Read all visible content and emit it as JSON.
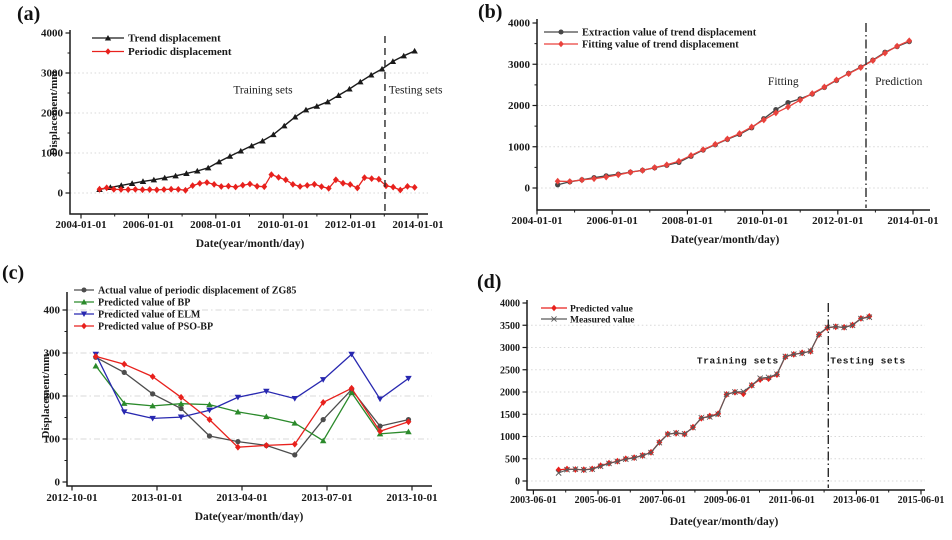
{
  "figure": {
    "background": "#ffffff",
    "text_color": "#1a1a1a",
    "grid_color": "#d8d8d8",
    "description": "Four-panel landslide displacement figure"
  },
  "chart_data": [
    {
      "id": "a",
      "panel_label": "(a)",
      "type": "line",
      "xlabel": "Date(year/month/day)",
      "ylabel": "Displacement/mm",
      "ylim": [
        0,
        4000
      ],
      "xlim_labels": [
        "2004-01-01",
        "2014-01-01"
      ],
      "legend_position": "top-left-inside",
      "grid": "dotted-horizontal",
      "x_ticks": [
        {
          "v": 2004,
          "label": "2004-01-01"
        },
        {
          "v": 2006,
          "label": "2006-01-01"
        },
        {
          "v": 2008,
          "label": "2008-01-01"
        },
        {
          "v": 2010,
          "label": "2010-01-01"
        },
        {
          "v": 2012,
          "label": "2012-01-01"
        },
        {
          "v": 2014,
          "label": "2014-01-01"
        }
      ],
      "x_minor": [
        2005,
        2007,
        2009,
        2011,
        2013
      ],
      "y_ticks": [
        {
          "v": 0,
          "label": "0"
        },
        {
          "v": 1000,
          "label": "1000"
        },
        {
          "v": 2000,
          "label": "2000"
        },
        {
          "v": 3000,
          "label": "3000"
        },
        {
          "v": 4000,
          "label": "4000"
        }
      ],
      "y_minor": [
        500,
        1500,
        2500,
        3500
      ],
      "grid_y": [
        0,
        1000,
        2000,
        3000
      ],
      "grid_dash": "1.5 2.6",
      "separator": {
        "x": 2013.02,
        "style": "dashed"
      },
      "annotations": [
        {
          "x": 2009.4,
          "y": 2585,
          "text": "Training sets"
        },
        {
          "x": 2013.93,
          "y": 2585,
          "text": "Testing sets"
        }
      ],
      "series": [
        {
          "name": "Trend displacement",
          "color": "#1a1a1a",
          "marker": "triangle-up",
          "width": 1.4,
          "x0": 2004.55,
          "dx": 0.3224,
          "values": [
            90,
            140,
            190,
            240,
            290,
            330,
            380,
            430,
            490,
            550,
            630,
            780,
            920,
            1050,
            1180,
            1300,
            1460,
            1680,
            1900,
            2080,
            2170,
            2280,
            2440,
            2600,
            2780,
            2950,
            3100,
            3290,
            3430,
            3550
          ]
        },
        {
          "name": "Periodic displacement",
          "color": "#e8211d",
          "marker": "diamond",
          "width": 1.3,
          "x0": 2004.55,
          "dx": 0.2125,
          "values": [
            95,
            130,
            92,
            88,
            85,
            90,
            82,
            86,
            78,
            88,
            95,
            90,
            68,
            185,
            240,
            262,
            215,
            162,
            172,
            150,
            195,
            225,
            168,
            158,
            460,
            390,
            330,
            215,
            162,
            190,
            218,
            160,
            115,
            330,
            245,
            212,
            125,
            385,
            360,
            345,
            180,
            148,
            75,
            165,
            140
          ]
        }
      ]
    },
    {
      "id": "b",
      "panel_label": "(b)",
      "type": "line",
      "xlabel": "Date(year/month/day)",
      "ylabel": "",
      "ylim": [
        0,
        4000
      ],
      "xlim_labels": [
        "2004-01-01",
        "2014-01-01"
      ],
      "legend_position": "top-left-inside",
      "grid": "dotted-horizontal",
      "x_ticks": [
        {
          "v": 2004,
          "label": "2004-01-01"
        },
        {
          "v": 2006,
          "label": "2006-01-01"
        },
        {
          "v": 2008,
          "label": "2008-01-01"
        },
        {
          "v": 2010,
          "label": "2010-01-01"
        },
        {
          "v": 2012,
          "label": "2012-01-01"
        },
        {
          "v": 2014,
          "label": "2014-01-01"
        }
      ],
      "x_minor": [
        2005,
        2007,
        2009,
        2011,
        2013
      ],
      "y_ticks": [
        {
          "v": 0,
          "label": "0"
        },
        {
          "v": 1000,
          "label": "1000"
        },
        {
          "v": 2000,
          "label": "2000"
        },
        {
          "v": 3000,
          "label": "3000"
        },
        {
          "v": 4000,
          "label": "4000"
        }
      ],
      "y_minor": [
        500,
        1500,
        2500,
        3500
      ],
      "grid_y": [
        0,
        1000,
        2000,
        3000
      ],
      "grid_dash": "1.5 2.6",
      "separator": {
        "x": 2012.75,
        "style": "dashdot"
      },
      "annotations": [
        {
          "x": 2010.55,
          "y": 2590,
          "text": "Fitting"
        },
        {
          "x": 2013.62,
          "y": 2590,
          "text": "Prediction"
        }
      ],
      "series": [
        {
          "name": "Extraction value of trend displacement",
          "color": "#474747",
          "marker": "circle",
          "width": 1.3,
          "x0": 2004.55,
          "dx": 0.3224,
          "values": [
            80,
            150,
            200,
            250,
            295,
            335,
            385,
            430,
            490,
            550,
            620,
            770,
            920,
            1050,
            1180,
            1300,
            1460,
            1680,
            1900,
            2070,
            2160,
            2280,
            2440,
            2610,
            2780,
            2930,
            3100,
            3290,
            3430,
            3550
          ]
        },
        {
          "name": "Fitting value of trend displacement",
          "color": "#e9423c",
          "marker": "diamond",
          "width": 1.3,
          "x0": 2004.55,
          "dx": 0.3224,
          "values": [
            165,
            158,
            196,
            226,
            266,
            320,
            382,
            426,
            496,
            562,
            650,
            790,
            930,
            1060,
            1190,
            1320,
            1480,
            1650,
            1820,
            1965,
            2130,
            2290,
            2450,
            2620,
            2770,
            2920,
            3090,
            3270,
            3440,
            3570
          ]
        }
      ]
    },
    {
      "id": "c",
      "panel_label": "(c)",
      "type": "line",
      "xlabel": "Date(year/month/day)",
      "ylabel": "Displacement/mm",
      "ylim": [
        0,
        400
      ],
      "xlim_labels": [
        "2012-10-01",
        "2013-10-01"
      ],
      "legend_position": "top-left-inside",
      "grid": "dashdot-horizontal",
      "x_ticks": [
        {
          "v": 2012.75,
          "label": "2012-10-01"
        },
        {
          "v": 2013.0,
          "label": "2013-01-01"
        },
        {
          "v": 2013.25,
          "label": "2013-04-01"
        },
        {
          "v": 2013.5,
          "label": "2013-07-01"
        },
        {
          "v": 2013.75,
          "label": "2013-10-01"
        }
      ],
      "x_minor": [],
      "y_ticks": [
        {
          "v": 0,
          "label": "0"
        },
        {
          "v": 100,
          "label": "100"
        },
        {
          "v": 200,
          "label": "200"
        },
        {
          "v": 300,
          "label": "300"
        },
        {
          "v": 400,
          "label": "400"
        }
      ],
      "y_minor": [
        50,
        150,
        250,
        350
      ],
      "grid_y": [
        100,
        200,
        300,
        400
      ],
      "grid_dash": "6 3 1.5 3",
      "separator": null,
      "annotations": [],
      "series": [
        {
          "name": "Actual value of periodic displacement of ZG85",
          "color": "#4d4d4d",
          "marker": "circle",
          "width": 1.3,
          "x0": 2012.82,
          "dx": 0.0836,
          "values": [
            290,
            255,
            205,
            171,
            107,
            94,
            85,
            63,
            145,
            215,
            130,
            145
          ]
        },
        {
          "name": "Predicted value of BP",
          "color": "#2b8a2b",
          "marker": "triangle-up",
          "width": 1.3,
          "x0": 2012.82,
          "dx": 0.0836,
          "values": [
            270,
            183,
            177,
            182,
            180,
            163,
            152,
            137,
            96,
            208,
            112,
            117
          ]
        },
        {
          "name": "Predicted value of ELM",
          "color": "#2828b0",
          "marker": "triangle-down",
          "width": 1.3,
          "x0": 2012.82,
          "dx": 0.0836,
          "values": [
            297,
            163,
            148,
            151,
            167,
            197,
            211,
            194,
            238,
            297,
            193,
            241
          ]
        },
        {
          "name": "Predicted value of PSO-BP",
          "color": "#e8211d",
          "marker": "diamond",
          "width": 1.3,
          "x0": 2012.82,
          "dx": 0.0836,
          "values": [
            292,
            274,
            245,
            197,
            145,
            81,
            85,
            88,
            185,
            218,
            118,
            140
          ]
        }
      ]
    },
    {
      "id": "d",
      "panel_label": "(d)",
      "type": "line",
      "xlabel": "Date(year/month/day)",
      "ylabel": "",
      "ylim": [
        0,
        4000
      ],
      "xlim_labels": [
        "2003-06-01",
        "2015-06-01"
      ],
      "legend_position": "top-left-inside",
      "grid": "dotted-horizontal",
      "x_ticks": [
        {
          "v": 2003.42,
          "label": "2003-06-01"
        },
        {
          "v": 2005.42,
          "label": "2005-06-01"
        },
        {
          "v": 2007.42,
          "label": "2007-06-01"
        },
        {
          "v": 2009.42,
          "label": "2009-06-01"
        },
        {
          "v": 2011.42,
          "label": "2011-06-01"
        },
        {
          "v": 2013.42,
          "label": "2013-06-01"
        },
        {
          "v": 2015.42,
          "label": "2015-06-01"
        }
      ],
      "x_minor": [
        2004.42,
        2006.42,
        2008.42,
        2010.42,
        2012.42,
        2014.42
      ],
      "y_ticks": [
        {
          "v": 0,
          "label": "0"
        },
        {
          "v": 500,
          "label": "500"
        },
        {
          "v": 1000,
          "label": "1000"
        },
        {
          "v": 1500,
          "label": "1500"
        },
        {
          "v": 2000,
          "label": "2000"
        },
        {
          "v": 2500,
          "label": "2500"
        },
        {
          "v": 3000,
          "label": "3000"
        },
        {
          "v": 3500,
          "label": "3500"
        },
        {
          "v": 4000,
          "label": "4000"
        }
      ],
      "y_minor": [],
      "grid_y": [
        0,
        500,
        1000,
        1500,
        2000,
        2500,
        3000,
        3500
      ],
      "grid_dash": "1.5 2.6",
      "separator": {
        "x": 2012.55,
        "style": "dashdot"
      },
      "annotations": [
        {
          "x": 2009.75,
          "y": 2725,
          "text": "Training sets",
          "mono": true
        },
        {
          "x": 2013.78,
          "y": 2725,
          "text": "Testing sets",
          "mono": true
        }
      ],
      "series": [
        {
          "name": "Predicted value",
          "color": "#e8211d",
          "marker": "diamond",
          "width": 1.2,
          "x0": 2004.2,
          "dx": 0.26,
          "values": [
            250,
            270,
            258,
            255,
            272,
            345,
            400,
            445,
            500,
            525,
            575,
            645,
            870,
            1055,
            1075,
            1055,
            1210,
            1410,
            1460,
            1510,
            1945,
            1995,
            1960,
            2150,
            2280,
            2300,
            2390,
            2790,
            2845,
            2880,
            2915,
            3290,
            3440,
            3465,
            3455,
            3505,
            3655,
            3700
          ]
        },
        {
          "name": "Measured value",
          "color": "#5a5a5a",
          "marker": "x",
          "width": 1.2,
          "x0": 2004.2,
          "dx": 0.26,
          "values": [
            180,
            255,
            265,
            250,
            265,
            330,
            395,
            440,
            490,
            520,
            570,
            640,
            860,
            1050,
            1080,
            1060,
            1200,
            1420,
            1440,
            1500,
            1950,
            2000,
            2010,
            2150,
            2310,
            2330,
            2400,
            2800,
            2850,
            2870,
            2920,
            3300,
            3450,
            3470,
            3450,
            3500,
            3650,
            3680
          ]
        }
      ]
    }
  ]
}
